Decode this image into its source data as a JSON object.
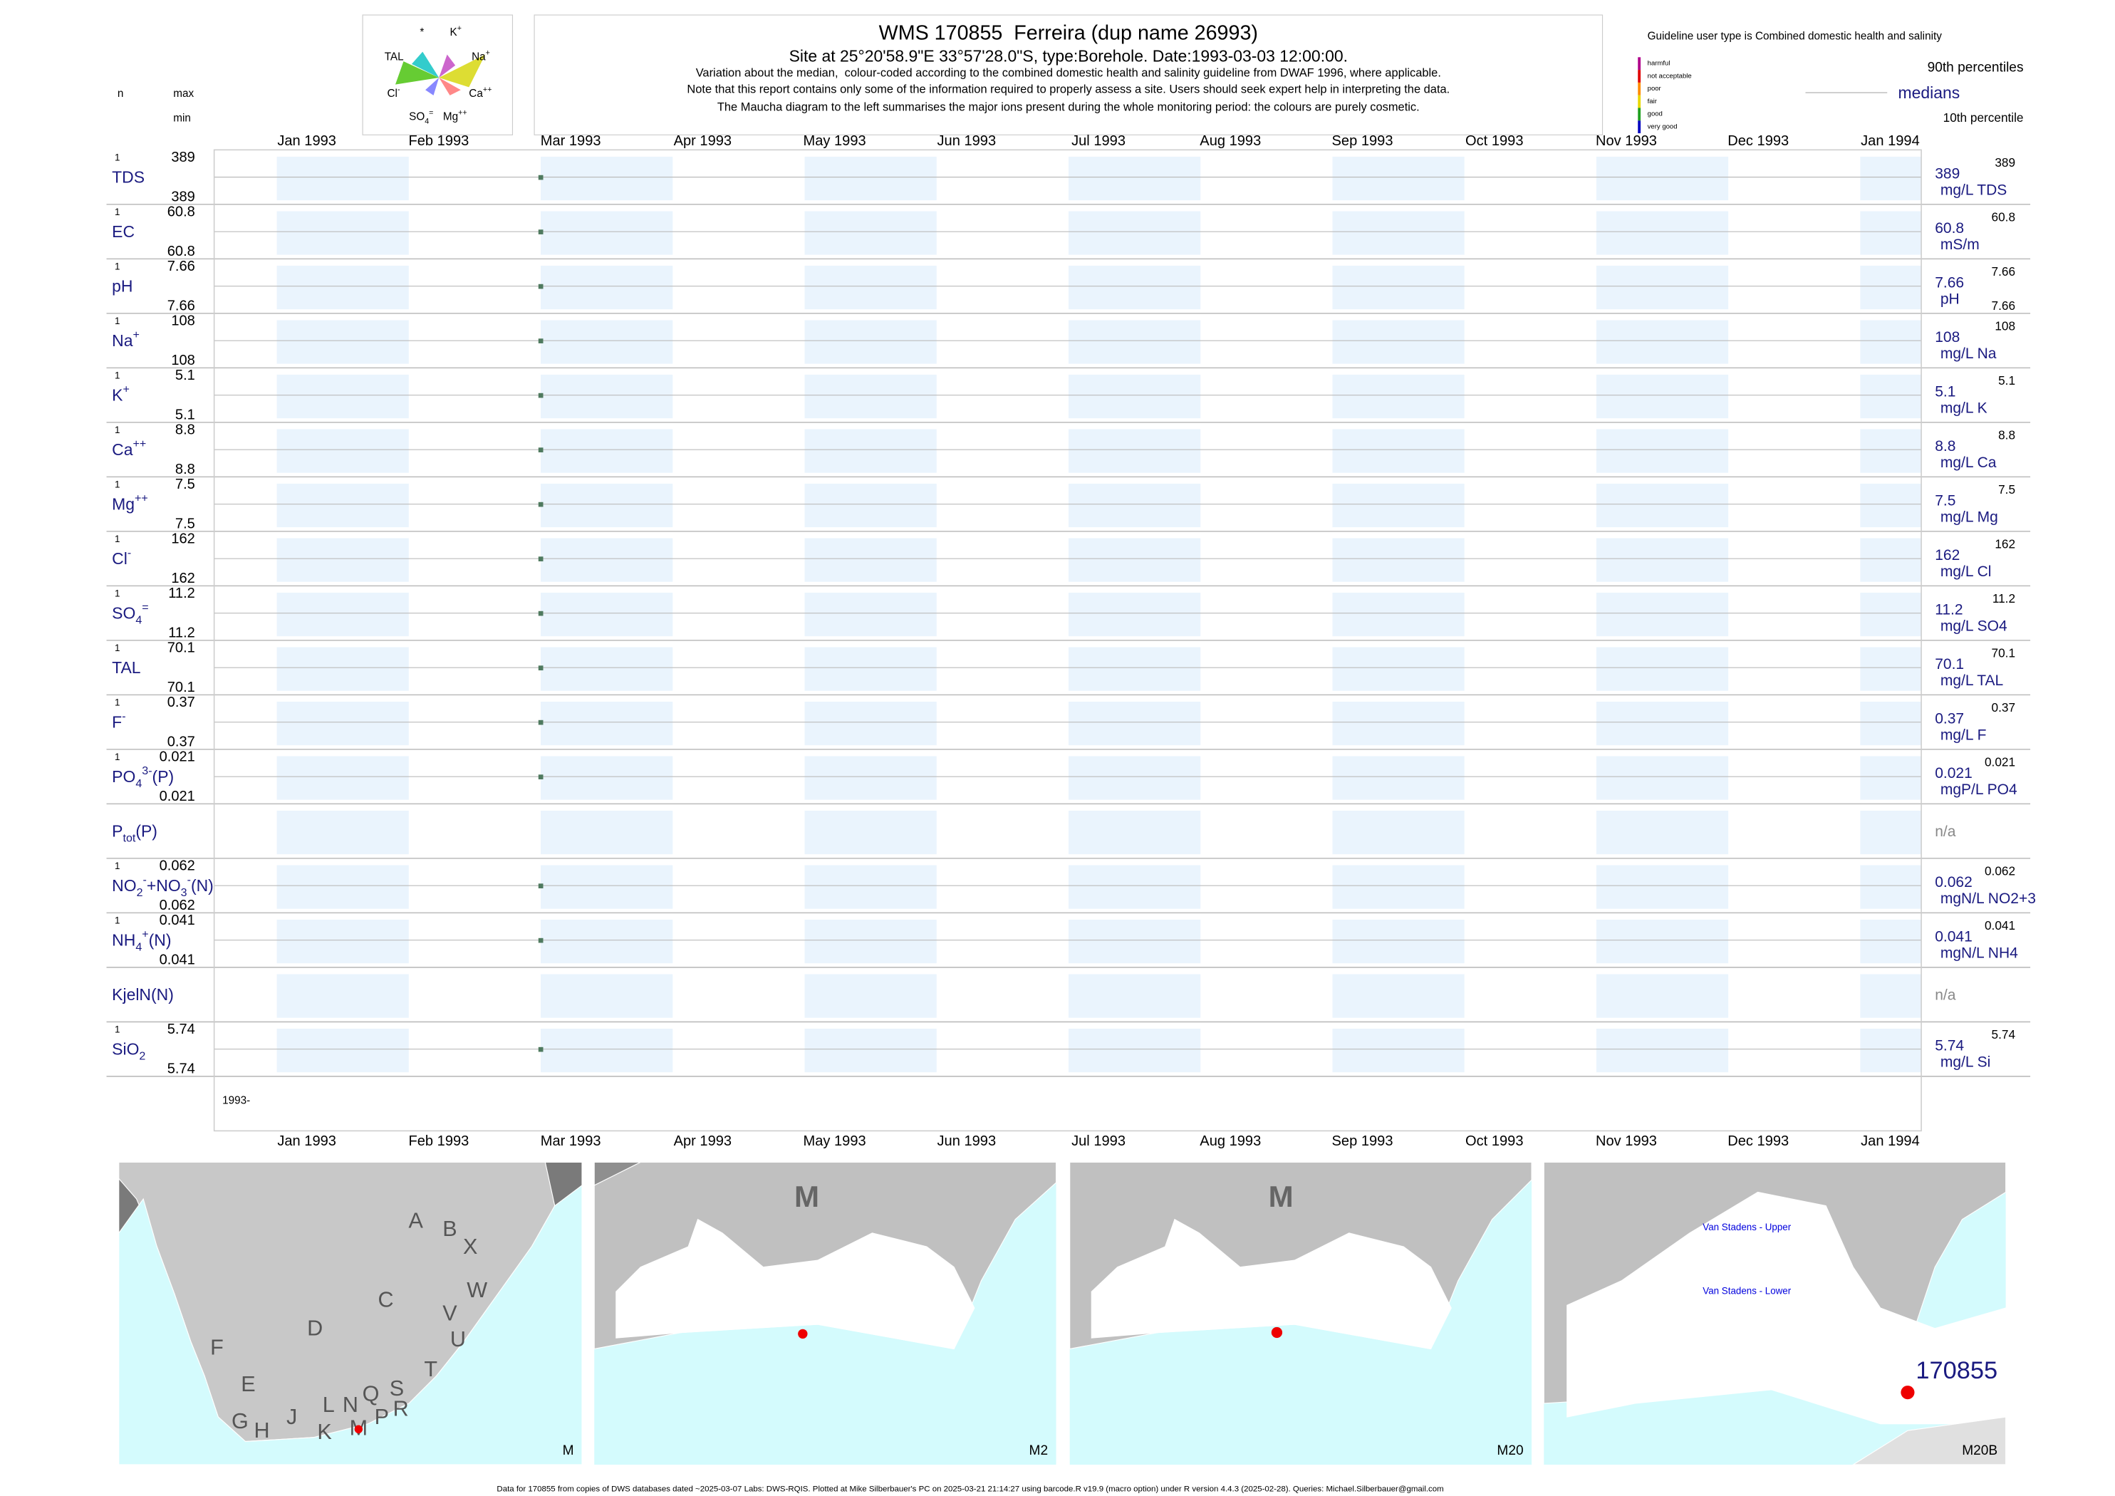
{
  "header": {
    "title": "WMS 170855  Ferreira (dup name 26993)",
    "site": "Site at 25°20'58.9\"E 33°57'28.0\"S, type:Borehole. Date:1993-03-03 12:00:00.",
    "notes": [
      "Variation about the median,  colour-coded according to the combined domestic health and salinity guideline from DWAF 1996, where applicable.",
      "Note that this report contains only some of the information required to properly assess a site. Users should seek expert help in interpreting the data.",
      "The Maucha diagram to the left summarises the major ions present during the whole monitoring period: the colours are purely cosmetic."
    ]
  },
  "maucha": {
    "labels": [
      [
        {
          "t": "*"
        }
      ],
      [
        {
          "t": "K"
        },
        {
          "sup": "+"
        }
      ],
      [
        {
          "t": "TAL"
        }
      ],
      [
        {
          "t": "Na"
        },
        {
          "sup": "+"
        }
      ],
      [
        {
          "t": "Cl"
        },
        {
          "sup": "-"
        }
      ],
      [
        {
          "t": "Ca"
        },
        {
          "sup": "++"
        }
      ],
      [
        {
          "t": "SO"
        },
        {
          "sub": "4"
        },
        {
          "sup": "="
        }
      ],
      [
        {
          "t": "Mg"
        },
        {
          "sup": "++"
        }
      ]
    ]
  },
  "left_header": {
    "n": "n",
    "max": "max",
    "min": "min"
  },
  "guideline": {
    "title": "Guideline user type is Combined domestic health and salinity",
    "classes": [
      {
        "label": "harmful",
        "color": "#b0008a"
      },
      {
        "label": "not acceptable",
        "color": "#e00000"
      },
      {
        "label": "poor",
        "color": "#ff8c00"
      },
      {
        "label": "fair",
        "color": "#e8d800"
      },
      {
        "label": "good",
        "color": "#20a020"
      },
      {
        "label": "very good",
        "color": "#0000c0"
      }
    ]
  },
  "percentile_legend": {
    "upper": "90th percentiles",
    "median": "medians",
    "lower": "10th percentile"
  },
  "months": [
    "Jan 1993",
    "Feb 1993",
    "Mar 1993",
    "Apr 1993",
    "May 1993",
    "Jun 1993",
    "Jul 1993",
    "Aug 1993",
    "Sep 1993",
    "Oct 1993",
    "Nov 1993",
    "Dec 1993",
    "Jan 1994"
  ],
  "year_label": "1993-",
  "rows": [
    {
      "label": [
        {
          "t": "TDS"
        }
      ],
      "n": "1",
      "max": "389",
      "min": "389",
      "median": "389",
      "right_max": "389",
      "unit": "mg/L TDS"
    },
    {
      "label": [
        {
          "t": "EC"
        }
      ],
      "n": "1",
      "max": "60.8",
      "min": "60.8",
      "median": "60.8",
      "right_max": "60.8",
      "unit": "mS/m"
    },
    {
      "label": [
        {
          "t": "pH"
        }
      ],
      "n": "1",
      "max": "7.66",
      "min": "7.66",
      "median": "7.66",
      "right_max": "7.66",
      "right_min": "7.66",
      "unit": "pH"
    },
    {
      "label": [
        {
          "t": "Na"
        },
        {
          "sup": "+"
        }
      ],
      "n": "1",
      "max": "108",
      "min": "108",
      "median": "108",
      "right_max": "108",
      "unit": "mg/L Na"
    },
    {
      "label": [
        {
          "t": "K"
        },
        {
          "sup": "+"
        }
      ],
      "n": "1",
      "max": "5.1",
      "min": "5.1",
      "median": "5.1",
      "right_max": "5.1",
      "unit": "mg/L K"
    },
    {
      "label": [
        {
          "t": "Ca"
        },
        {
          "sup": "++"
        }
      ],
      "n": "1",
      "max": "8.8",
      "min": "8.8",
      "median": "8.8",
      "right_max": "8.8",
      "unit": "mg/L Ca"
    },
    {
      "label": [
        {
          "t": "Mg"
        },
        {
          "sup": "++"
        }
      ],
      "n": "1",
      "max": "7.5",
      "min": "7.5",
      "median": "7.5",
      "right_max": "7.5",
      "unit": "mg/L Mg"
    },
    {
      "label": [
        {
          "t": "Cl"
        },
        {
          "sup": "-"
        }
      ],
      "n": "1",
      "max": "162",
      "min": "162",
      "median": "162",
      "right_max": "162",
      "unit": "mg/L Cl"
    },
    {
      "label": [
        {
          "t": "SO"
        },
        {
          "sub": "4"
        },
        {
          "sup": "="
        }
      ],
      "n": "1",
      "max": "11.2",
      "min": "11.2",
      "median": "11.2",
      "right_max": "11.2",
      "unit": "mg/L SO4"
    },
    {
      "label": [
        {
          "t": "TAL"
        }
      ],
      "n": "1",
      "max": "70.1",
      "min": "70.1",
      "median": "70.1",
      "right_max": "70.1",
      "unit": "mg/L TAL"
    },
    {
      "label": [
        {
          "t": "F"
        },
        {
          "sup": "-"
        }
      ],
      "n": "1",
      "max": "0.37",
      "min": "0.37",
      "median": "0.37",
      "right_max": "0.37",
      "unit": "mg/L F"
    },
    {
      "label": [
        {
          "t": "PO"
        },
        {
          "sub": "4"
        },
        {
          "sup": "3-"
        },
        {
          "t": "(P)"
        }
      ],
      "n": "1",
      "max": "0.021",
      "min": "0.021",
      "median": "0.021",
      "right_max": "0.021",
      "unit": "mgP/L PO4"
    },
    {
      "label": [
        {
          "t": "P"
        },
        {
          "sub": "tot"
        },
        {
          "t": "(P)"
        }
      ],
      "na": "n/a"
    },
    {
      "label": [
        {
          "t": "NO"
        },
        {
          "sub": "2"
        },
        {
          "sup": "-"
        },
        {
          "t": "+NO"
        },
        {
          "sub": "3"
        },
        {
          "sup": "-"
        },
        {
          "t": "(N)"
        }
      ],
      "n": "1",
      "max": "0.062",
      "min": "0.062",
      "median": "0.062",
      "right_max": "0.062",
      "unit": "mgN/L NO2+3"
    },
    {
      "label": [
        {
          "t": "NH"
        },
        {
          "sub": "4"
        },
        {
          "sup": "+"
        },
        {
          "t": "(N)"
        }
      ],
      "n": "1",
      "max": "0.041",
      "min": "0.041",
      "median": "0.041",
      "right_max": "0.041",
      "unit": "mgN/L NH4"
    },
    {
      "label": [
        {
          "t": "KjelN(N)"
        }
      ],
      "na": "n/a"
    },
    {
      "label": [
        {
          "t": "SiO"
        },
        {
          "sub": "2"
        }
      ],
      "n": "1",
      "max": "5.74",
      "min": "5.74",
      "median": "5.74",
      "right_max": "5.74",
      "unit": "mg/L Si"
    }
  ],
  "maps": [
    {
      "name": "M",
      "labels": [
        "A",
        "B",
        "X",
        "C",
        "W",
        "D",
        "V",
        "U",
        "F",
        "T",
        "E",
        "S",
        "Q",
        "R",
        "L",
        "N",
        "P",
        "J",
        "G",
        "H",
        "K",
        "M"
      ]
    },
    {
      "name": "M2",
      "labels": [
        "M"
      ]
    },
    {
      "name": "M20",
      "labels": [
        "M"
      ]
    },
    {
      "name": "M20B",
      "labels": [
        "Van Stadens - Upper",
        "Van Stadens - Lower",
        "170855"
      ]
    }
  ],
  "footer": "Data for 170855 from copies of DWS databases dated ~2025-03-07 Labs: DWS-RQIS. Plotted at Mike Silberbauer's PC on 2025-03-21 21:14:27 using barcode.R v19.9 (macro option) under R version 4.4.3 (2025-02-28). Queries: Michael.Silberbauer@gmail.com"
}
